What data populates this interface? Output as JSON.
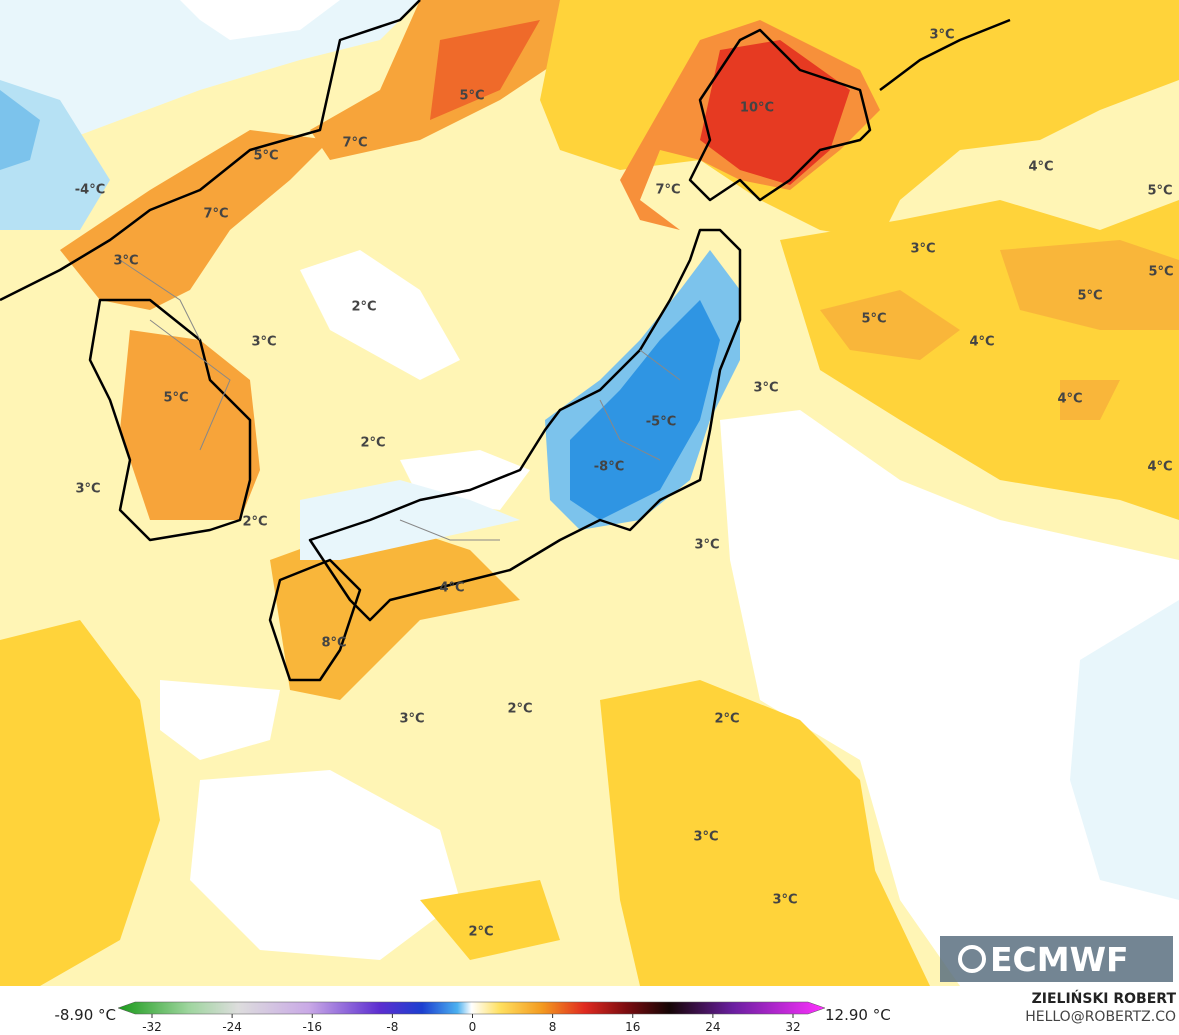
{
  "map": {
    "labels": [
      "5°C",
      "10°C",
      "3°C",
      "5°C",
      "7°C",
      "-4°C",
      "7°C",
      "7°C",
      "4°C",
      "5°C",
      "3°C",
      "3°C",
      "5°C",
      "5°C",
      "2°C",
      "5°C",
      "3°C",
      "4°C",
      "3°C",
      "5°C",
      "4°C",
      "-5°C",
      "2°C",
      "-8°C",
      "4°C",
      "3°C",
      "2°C",
      "3°C",
      "4°C",
      "8°C",
      "3°C",
      "2°C",
      "2°C",
      "3°C",
      "3°C",
      "2°C"
    ],
    "logo": "ECMWF"
  },
  "legend": {
    "min_label": "-8.90 °C",
    "max_label": "12.90 °C",
    "ticks": [
      -32,
      -24,
      -16,
      -8,
      0,
      8,
      16,
      24,
      32
    ]
  },
  "credits": {
    "author": "ZIELIŃSKI ROBERT",
    "contact": "HELLO@ROBERTZ.CO"
  }
}
